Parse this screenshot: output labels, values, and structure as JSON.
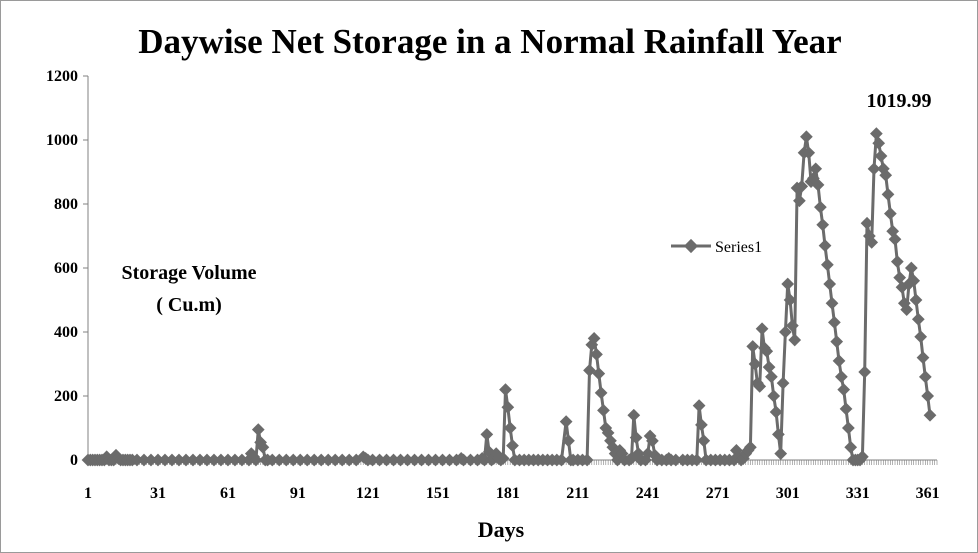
{
  "chart_data": {
    "type": "line",
    "title": "Daywise Net Storage in a Normal Rainfall Year",
    "xlabel": "Days",
    "ylabel_lines": [
      "Storage Volume",
      "( Cu.m)"
    ],
    "xlim": [
      1,
      365
    ],
    "ylim": [
      0,
      1200
    ],
    "y_ticks": [
      "0",
      "200",
      "400",
      "600",
      "800",
      "1000",
      "1200"
    ],
    "x_ticks": [
      "1",
      "31",
      "61",
      "91",
      "121",
      "151",
      "181",
      "211",
      "241",
      "271",
      "301",
      "331",
      "361"
    ],
    "grid": false,
    "legend": "center-right",
    "series_color": "#6b6b6b",
    "annotation": {
      "label": "1019.99",
      "x": 342,
      "y": 1019.99
    },
    "series": [
      {
        "name": "Series1",
        "points": [
          [
            1,
            0
          ],
          [
            2,
            0
          ],
          [
            3,
            0
          ],
          [
            4,
            0
          ],
          [
            5,
            0
          ],
          [
            6,
            0
          ],
          [
            7,
            0
          ],
          [
            8,
            0
          ],
          [
            9,
            10
          ],
          [
            10,
            0
          ],
          [
            11,
            0
          ],
          [
            12,
            0
          ],
          [
            13,
            15
          ],
          [
            14,
            5
          ],
          [
            15,
            0
          ],
          [
            16,
            0
          ],
          [
            17,
            0
          ],
          [
            18,
            0
          ],
          [
            19,
            0
          ],
          [
            20,
            0
          ],
          [
            22,
            0
          ],
          [
            25,
            0
          ],
          [
            28,
            0
          ],
          [
            31,
            0
          ],
          [
            34,
            0
          ],
          [
            37,
            0
          ],
          [
            40,
            0
          ],
          [
            43,
            0
          ],
          [
            46,
            0
          ],
          [
            49,
            0
          ],
          [
            52,
            0
          ],
          [
            55,
            0
          ],
          [
            58,
            0
          ],
          [
            61,
            0
          ],
          [
            64,
            0
          ],
          [
            67,
            0
          ],
          [
            70,
            0
          ],
          [
            71,
            20
          ],
          [
            72,
            10
          ],
          [
            73,
            0
          ],
          [
            74,
            95
          ],
          [
            75,
            55
          ],
          [
            76,
            40
          ],
          [
            77,
            0
          ],
          [
            78,
            0
          ],
          [
            80,
            0
          ],
          [
            83,
            0
          ],
          [
            86,
            0
          ],
          [
            89,
            0
          ],
          [
            92,
            0
          ],
          [
            95,
            0
          ],
          [
            98,
            0
          ],
          [
            101,
            0
          ],
          [
            104,
            0
          ],
          [
            107,
            0
          ],
          [
            110,
            0
          ],
          [
            113,
            0
          ],
          [
            116,
            0
          ],
          [
            119,
            10
          ],
          [
            120,
            5
          ],
          [
            121,
            0
          ],
          [
            123,
            0
          ],
          [
            126,
            0
          ],
          [
            129,
            0
          ],
          [
            132,
            0
          ],
          [
            135,
            0
          ],
          [
            138,
            0
          ],
          [
            141,
            0
          ],
          [
            144,
            0
          ],
          [
            147,
            0
          ],
          [
            150,
            0
          ],
          [
            153,
            0
          ],
          [
            156,
            0
          ],
          [
            159,
            0
          ],
          [
            161,
            5
          ],
          [
            162,
            0
          ],
          [
            165,
            0
          ],
          [
            168,
            0
          ],
          [
            170,
            5
          ],
          [
            171,
            0
          ],
          [
            172,
            80
          ],
          [
            173,
            25
          ],
          [
            174,
            0
          ],
          [
            175,
            5
          ],
          [
            176,
            20
          ],
          [
            177,
            5
          ],
          [
            178,
            0
          ],
          [
            179,
            5
          ],
          [
            180,
            220
          ],
          [
            181,
            165
          ],
          [
            182,
            100
          ],
          [
            183,
            45
          ],
          [
            184,
            0
          ],
          [
            186,
            0
          ],
          [
            188,
            0
          ],
          [
            190,
            0
          ],
          [
            192,
            0
          ],
          [
            194,
            0
          ],
          [
            196,
            0
          ],
          [
            198,
            0
          ],
          [
            200,
            0
          ],
          [
            202,
            0
          ],
          [
            204,
            0
          ],
          [
            206,
            120
          ],
          [
            207,
            60
          ],
          [
            208,
            0
          ],
          [
            209,
            0
          ],
          [
            211,
            0
          ],
          [
            213,
            0
          ],
          [
            215,
            0
          ],
          [
            216,
            280
          ],
          [
            217,
            360
          ],
          [
            218,
            380
          ],
          [
            219,
            330
          ],
          [
            220,
            270
          ],
          [
            221,
            210
          ],
          [
            222,
            155
          ],
          [
            223,
            100
          ],
          [
            224,
            85
          ],
          [
            225,
            60
          ],
          [
            226,
            40
          ],
          [
            227,
            20
          ],
          [
            228,
            0
          ],
          [
            229,
            30
          ],
          [
            230,
            20
          ],
          [
            231,
            0
          ],
          [
            233,
            0
          ],
          [
            234,
            5
          ],
          [
            235,
            140
          ],
          [
            236,
            70
          ],
          [
            237,
            20
          ],
          [
            238,
            0
          ],
          [
            240,
            0
          ],
          [
            241,
            20
          ],
          [
            242,
            75
          ],
          [
            243,
            60
          ],
          [
            244,
            15
          ],
          [
            245,
            0
          ],
          [
            247,
            0
          ],
          [
            249,
            0
          ],
          [
            250,
            5
          ],
          [
            251,
            0
          ],
          [
            253,
            0
          ],
          [
            256,
            0
          ],
          [
            258,
            0
          ],
          [
            260,
            0
          ],
          [
            262,
            0
          ],
          [
            263,
            170
          ],
          [
            264,
            110
          ],
          [
            265,
            60
          ],
          [
            266,
            0
          ],
          [
            268,
            0
          ],
          [
            270,
            0
          ],
          [
            272,
            0
          ],
          [
            274,
            0
          ],
          [
            276,
            0
          ],
          [
            278,
            0
          ],
          [
            279,
            30
          ],
          [
            280,
            10
          ],
          [
            281,
            0
          ],
          [
            282,
            5
          ],
          [
            283,
            20
          ],
          [
            284,
            30
          ],
          [
            285,
            40
          ],
          [
            286,
            355
          ],
          [
            287,
            300
          ],
          [
            288,
            240
          ],
          [
            289,
            230
          ],
          [
            290,
            410
          ],
          [
            291,
            350
          ],
          [
            292,
            340
          ],
          [
            293,
            290
          ],
          [
            294,
            260
          ],
          [
            295,
            200
          ],
          [
            296,
            150
          ],
          [
            297,
            80
          ],
          [
            298,
            20
          ],
          [
            299,
            240
          ],
          [
            300,
            400
          ],
          [
            301,
            550
          ],
          [
            302,
            500
          ],
          [
            303,
            420
          ],
          [
            304,
            375
          ],
          [
            305,
            850
          ],
          [
            306,
            810
          ],
          [
            307,
            855
          ],
          [
            308,
            960
          ],
          [
            309,
            1010
          ],
          [
            310,
            960
          ],
          [
            311,
            870
          ],
          [
            312,
            880
          ],
          [
            313,
            910
          ],
          [
            314,
            860
          ],
          [
            315,
            790
          ],
          [
            316,
            735
          ],
          [
            317,
            670
          ],
          [
            318,
            610
          ],
          [
            319,
            550
          ],
          [
            320,
            490
          ],
          [
            321,
            430
          ],
          [
            322,
            370
          ],
          [
            323,
            310
          ],
          [
            324,
            260
          ],
          [
            325,
            220
          ],
          [
            326,
            160
          ],
          [
            327,
            100
          ],
          [
            328,
            40
          ],
          [
            329,
            0
          ],
          [
            330,
            0
          ],
          [
            331,
            0
          ],
          [
            332,
            0
          ],
          [
            333,
            10
          ],
          [
            334,
            275
          ],
          [
            335,
            740
          ],
          [
            336,
            700
          ],
          [
            337,
            680
          ],
          [
            338,
            910
          ],
          [
            339,
            1020
          ],
          [
            340,
            990
          ],
          [
            341,
            950
          ],
          [
            342,
            910
          ],
          [
            343,
            890
          ],
          [
            344,
            830
          ],
          [
            345,
            770
          ],
          [
            346,
            715
          ],
          [
            347,
            690
          ],
          [
            348,
            620
          ],
          [
            349,
            570
          ],
          [
            350,
            540
          ],
          [
            351,
            490
          ],
          [
            352,
            470
          ],
          [
            353,
            550
          ],
          [
            354,
            600
          ],
          [
            355,
            560
          ],
          [
            356,
            500
          ],
          [
            357,
            440
          ],
          [
            358,
            385
          ],
          [
            359,
            320
          ],
          [
            360,
            260
          ],
          [
            361,
            200
          ],
          [
            362,
            140
          ]
        ]
      }
    ]
  }
}
